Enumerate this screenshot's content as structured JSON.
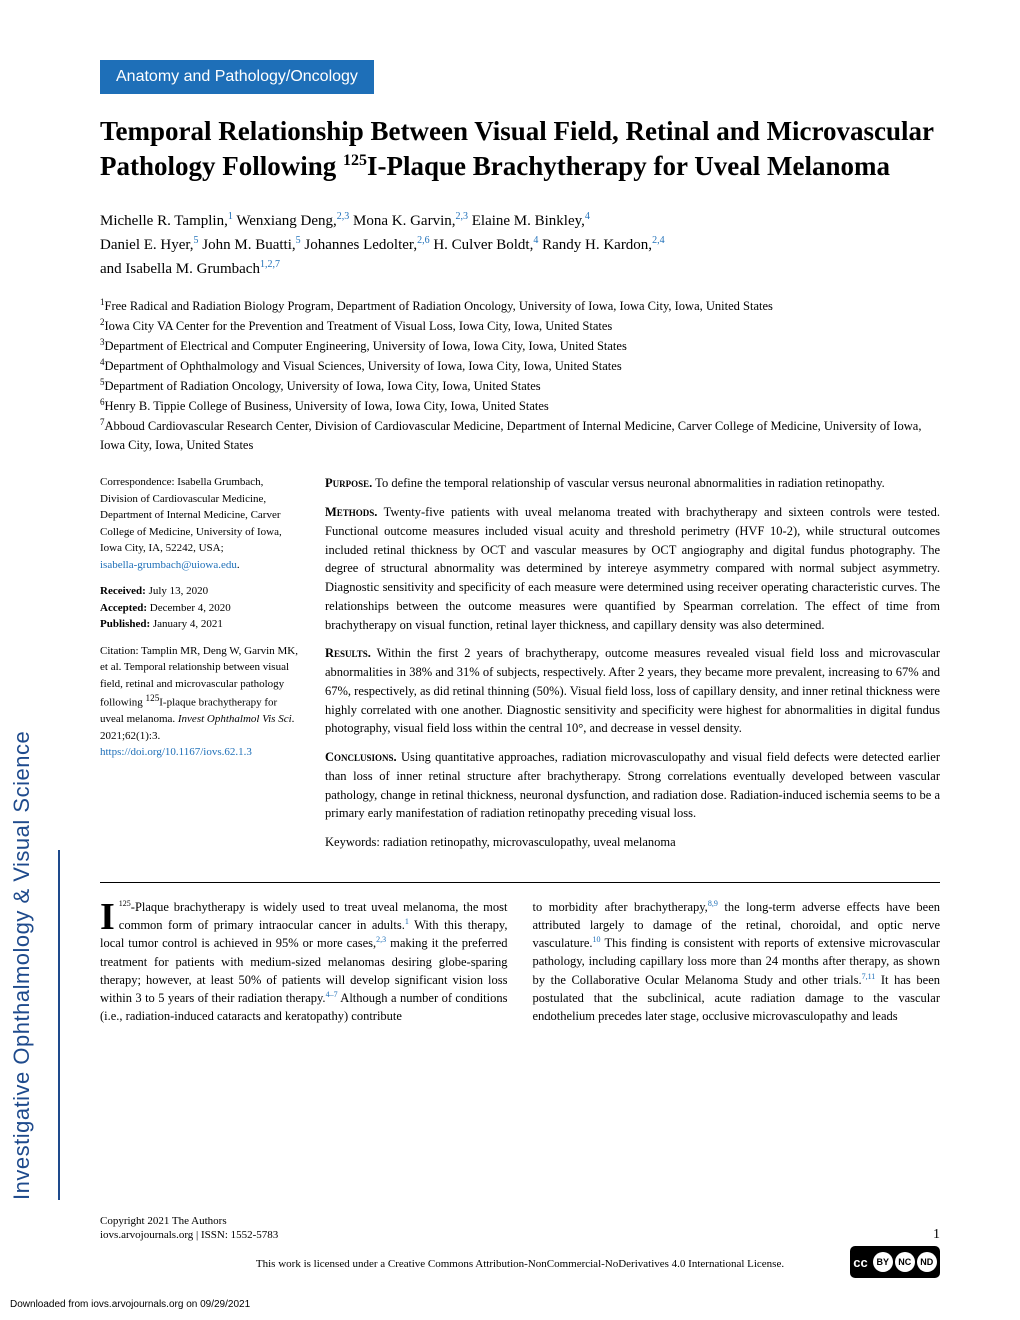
{
  "journal_sidebar": "Investigative Ophthalmology & Visual Science",
  "category": "Anatomy and Pathology/Oncology",
  "title_part1": "Temporal Relationship Between Visual Field, Retinal and Microvascular Pathology Following ",
  "title_sup": "125",
  "title_part2": "I-Plaque Brachytherapy for Uveal Melanoma",
  "authors": {
    "a1": {
      "name": "Michelle R. Tamplin,",
      "sup": "1"
    },
    "a2": {
      "name": " Wenxiang Deng,",
      "sup": "2,3"
    },
    "a3": {
      "name": " Mona K. Garvin,",
      "sup": "2,3"
    },
    "a4": {
      "name": " Elaine M. Binkley,",
      "sup": "4"
    },
    "a5": {
      "name": "Daniel E. Hyer,",
      "sup": "5"
    },
    "a6": {
      "name": " John M. Buatti,",
      "sup": "5"
    },
    "a7": {
      "name": " Johannes Ledolter,",
      "sup": "2,6"
    },
    "a8": {
      "name": " H. Culver Boldt,",
      "sup": "4"
    },
    "a9": {
      "name": " Randy H. Kardon,",
      "sup": "2,4"
    },
    "a10": {
      "name": "and Isabella M. Grumbach",
      "sup": "1,2,7"
    }
  },
  "affiliations": {
    "f1": {
      "num": "1",
      "text": "Free Radical and Radiation Biology Program, Department of Radiation Oncology, University of Iowa, Iowa City, Iowa, United States"
    },
    "f2": {
      "num": "2",
      "text": "Iowa City VA Center for the Prevention and Treatment of Visual Loss, Iowa City, Iowa, United States"
    },
    "f3": {
      "num": "3",
      "text": "Department of Electrical and Computer Engineering, University of Iowa, Iowa City, Iowa, United States"
    },
    "f4": {
      "num": "4",
      "text": "Department of Ophthalmology and Visual Sciences, University of Iowa, Iowa City, Iowa, United States"
    },
    "f5": {
      "num": "5",
      "text": "Department of Radiation Oncology, University of Iowa, Iowa City, Iowa, United States"
    },
    "f6": {
      "num": "6",
      "text": "Henry B. Tippie College of Business, University of Iowa, Iowa City, Iowa, United States"
    },
    "f7": {
      "num": "7",
      "text": "Abboud Cardiovascular Research Center, Division of Cardiovascular Medicine, Department of Internal Medicine, Carver College of Medicine, University of Iowa, Iowa City, Iowa, United States"
    }
  },
  "correspondence": {
    "label": "Correspondence: ",
    "text": "Isabella Grumbach, Division of Cardiovascular Medicine, Department of Internal Medicine, Carver College of Medicine, University of Iowa, Iowa City, IA, 52242, USA;",
    "email": "isabella-grumbach@uiowa.edu",
    "period": "."
  },
  "dates": {
    "received_label": "Received:",
    "received": " July 13, 2020",
    "accepted_label": "Accepted:",
    "accepted": " December 4, 2020",
    "published_label": "Published:",
    "published": " January 4, 2021"
  },
  "citation": {
    "text": "Citation: Tamplin MR, Deng W, Garvin MK, et al. Temporal relationship between visual field, retinal and microvascular pathology following ",
    "sup_text": "125",
    "text2": "I-plaque brachytherapy for uveal melanoma. ",
    "journal": "Invest Ophthalmol Vis Sci",
    "text3": ". 2021;62(1):3.",
    "doi": "https://doi.org/10.1167/iovs.62.1.3"
  },
  "abstract": {
    "purpose_label": "Purpose.",
    "purpose": " To define the temporal relationship of vascular versus neuronal abnormalities in radiation retinopathy.",
    "methods_label": "Methods.",
    "methods": " Twenty-five patients with uveal melanoma treated with brachytherapy and sixteen controls were tested. Functional outcome measures included visual acuity and threshold perimetry (HVF 10-2), while structural outcomes included retinal thickness by OCT and vascular measures by OCT angiography and digital fundus photography. The degree of structural abnormality was determined by intereye asymmetry compared with normal subject asymmetry. Diagnostic sensitivity and specificity of each measure were determined using receiver operating characteristic curves. The relationships between the outcome measures were quantified by Spearman correlation. The effect of time from brachytherapy on visual function, retinal layer thickness, and capillary density was also determined.",
    "results_label": "Results.",
    "results": " Within the first 2 years of brachytherapy, outcome measures revealed visual field loss and microvascular abnormalities in 38% and 31% of subjects, respectively. After 2 years, they became more prevalent, increasing to 67% and 67%, respectively, as did retinal thinning (50%). Visual field loss, loss of capillary density, and inner retinal thickness were highly correlated with one another. Diagnostic sensitivity and specificity were highest for abnormalities in digital fundus photography, visual field loss within the central 10°, and decrease in vessel density.",
    "conclusions_label": "Conclusions.",
    "conclusions": " Using quantitative approaches, radiation microvasculopathy and visual field defects were detected earlier than loss of inner retinal structure after brachytherapy. Strong correlations eventually developed between vascular pathology, change in retinal thickness, neuronal dysfunction, and radiation dose. Radiation-induced ischemia seems to be a primary early manifestation of radiation retinopathy preceding visual loss.",
    "keywords": "Keywords: radiation retinopathy, microvasculopathy, uveal melanoma"
  },
  "body": {
    "col1_sup": "125",
    "col1_text1": "-Plaque brachytherapy is widely used to treat uveal melanoma, the most common form of primary intraocular cancer in adults.",
    "col1_ref1": "1",
    "col1_text2": " With this therapy, local tumor control is achieved in 95% or more cases,",
    "col1_ref2": "2,3",
    "col1_text3": " making it the preferred treatment for patients with medium-sized melanomas desiring globe-sparing therapy; however, at least 50% of patients will develop significant vision loss within 3 to 5 years of their radiation therapy.",
    "col1_ref3": "4–7",
    "col1_text4": " Although a number of conditions (i.e., radiation-induced cataracts and keratopathy) contribute",
    "col2_text1": "to morbidity after brachytherapy,",
    "col2_ref1": "8,9",
    "col2_text2": " the long-term adverse effects have been attributed largely to damage of the retinal, choroidal, and optic nerve vasculature.",
    "col2_ref2": "10",
    "col2_text3": " This finding is consistent with reports of extensive microvascular pathology, including capillary loss more than 24 months after therapy, as shown by the Collaborative Ocular Melanoma Study and other trials.",
    "col2_ref3": "7,11",
    "col2_text4": " It has been postulated that the subclinical, acute radiation damage to the vascular endothelium precedes later stage, occlusive microvasculopathy and leads"
  },
  "footer": {
    "copyright": "Copyright 2021 The Authors",
    "journal_info": "iovs.arvojournals.org | ISSN: 1552-5783",
    "page": "1",
    "license": "This work is licensed under a Creative Commons Attribution-NonCommercial-NoDerivatives 4.0 International License."
  },
  "download_note": "Downloaded from iovs.arvojournals.org on 09/29/2021"
}
